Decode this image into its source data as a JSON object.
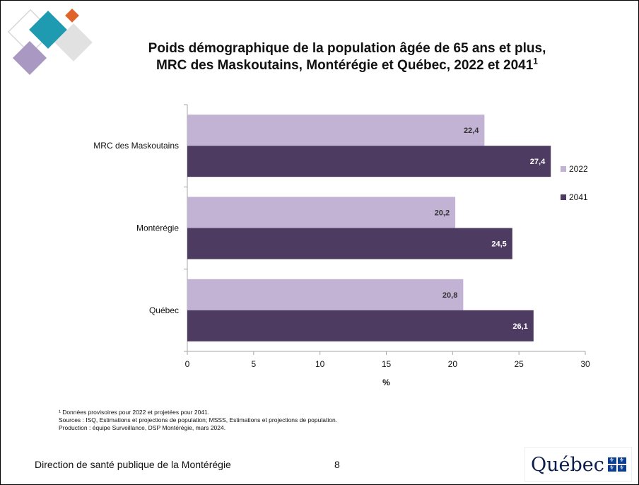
{
  "title": {
    "line1": "Poids démographique de la population âgée de 65 ans et plus,",
    "line2": "MRC des Maskoutains, Montérégie et Québec, 2022 et 2041",
    "superscript": "1"
  },
  "chart_data": {
    "type": "bar",
    "orientation": "horizontal",
    "categories": [
      "MRC des Maskoutains",
      "Montérégie",
      "Québec"
    ],
    "series": [
      {
        "name": "2022",
        "values": [
          22.4,
          20.2,
          20.8
        ],
        "labels": [
          "22,4",
          "20,2",
          "20,8"
        ],
        "color": "#c2b2d4"
      },
      {
        "name": "2041",
        "values": [
          27.4,
          24.5,
          26.1
        ],
        "labels": [
          "27,4",
          "24,5",
          "26,1"
        ],
        "color": "#4d3b61"
      }
    ],
    "xlabel": "%",
    "ylabel": "",
    "xlim": [
      0,
      30
    ],
    "xticks": [
      "0",
      "5",
      "10",
      "15",
      "20",
      "25",
      "30"
    ],
    "grid": false,
    "legend_position": "right"
  },
  "footnotes": [
    "¹ Données provisoires pour 2022 et projetées pour 2041.",
    "Sources : ISQ, Estimations et projections de population; MSSS, Estimations et projections de population.",
    "Production : équipe Surveillance, DSP Montérégie, mars 2024."
  ],
  "footer": {
    "organization": "Direction de santé publique de la Montérégie",
    "page_number": "8",
    "logo_text": "Québec"
  },
  "colors": {
    "series_2022": "#c2b2d4",
    "series_2041": "#4d3b61",
    "deco_teal": "#1e9bb0",
    "deco_orange": "#e0632a",
    "deco_purple": "#a898c2"
  }
}
